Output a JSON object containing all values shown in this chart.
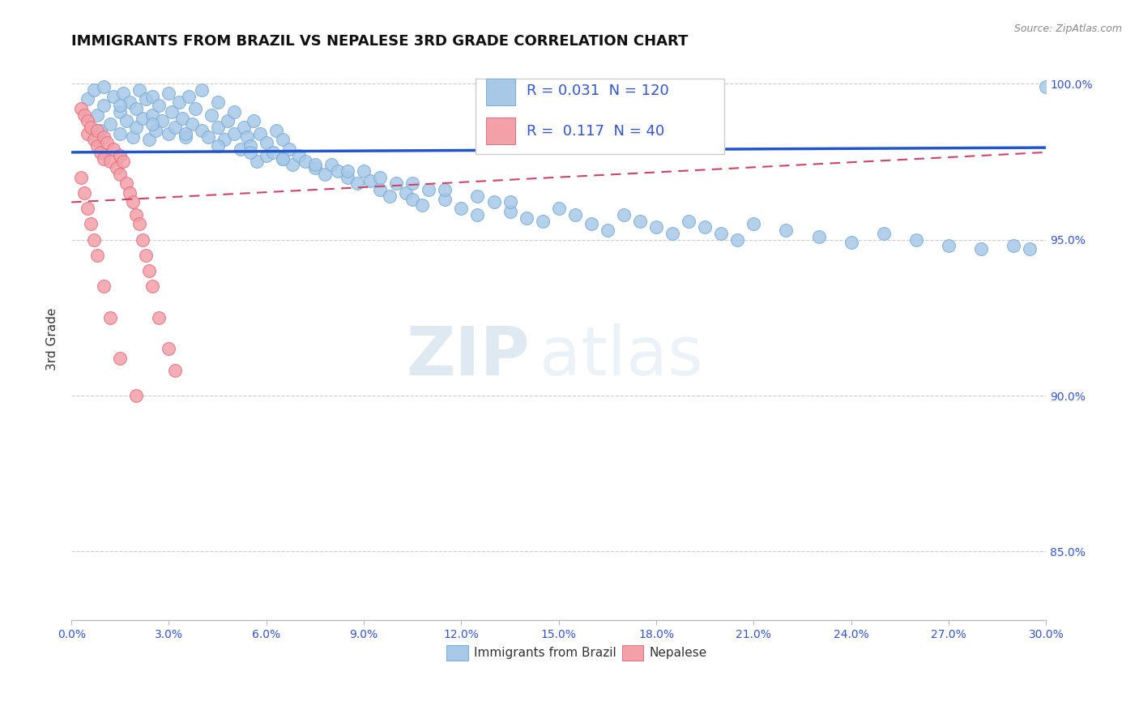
{
  "title": "IMMIGRANTS FROM BRAZIL VS NEPALESE 3RD GRADE CORRELATION CHART",
  "source_text": "Source: ZipAtlas.com",
  "ylabel": "3rd Grade",
  "legend_label1": "Immigrants from Brazil",
  "legend_label2": "Nepalese",
  "R1": "0.031",
  "N1": "120",
  "R2": "0.117",
  "N2": "40",
  "blue_color": "#a8c8e8",
  "blue_edge_color": "#7aadd4",
  "pink_color": "#f4a0a8",
  "pink_edge_color": "#e07080",
  "blue_line_color": "#2255cc",
  "pink_line_color": "#cc4466",
  "text_color": "#3355cc",
  "watermark_color": "#c8dff0",
  "xmin": 0.0,
  "xmax": 0.3,
  "ymin": 0.828,
  "ymax": 1.008,
  "y_ticks": [
    0.85,
    0.9,
    0.95,
    1.0
  ],
  "y_tick_labels": [
    "85.0%",
    "90.0%",
    "95.0%",
    "100.0%"
  ],
  "blue_line_y0": 0.978,
  "blue_line_y1": 0.9795,
  "pink_line_y0": 0.962,
  "pink_line_y1": 0.978,
  "blue_scatter_x": [
    0.005,
    0.007,
    0.008,
    0.009,
    0.01,
    0.01,
    0.012,
    0.013,
    0.015,
    0.015,
    0.016,
    0.017,
    0.018,
    0.019,
    0.02,
    0.02,
    0.021,
    0.022,
    0.023,
    0.024,
    0.025,
    0.025,
    0.026,
    0.027,
    0.028,
    0.03,
    0.03,
    0.031,
    0.032,
    0.033,
    0.034,
    0.035,
    0.036,
    0.037,
    0.038,
    0.04,
    0.04,
    0.042,
    0.043,
    0.045,
    0.045,
    0.047,
    0.048,
    0.05,
    0.05,
    0.052,
    0.053,
    0.054,
    0.055,
    0.056,
    0.057,
    0.058,
    0.06,
    0.06,
    0.062,
    0.063,
    0.065,
    0.065,
    0.067,
    0.068,
    0.07,
    0.072,
    0.075,
    0.078,
    0.08,
    0.082,
    0.085,
    0.088,
    0.09,
    0.092,
    0.095,
    0.098,
    0.1,
    0.103,
    0.105,
    0.108,
    0.11,
    0.115,
    0.12,
    0.125,
    0.13,
    0.135,
    0.14,
    0.145,
    0.15,
    0.155,
    0.16,
    0.165,
    0.17,
    0.175,
    0.18,
    0.185,
    0.19,
    0.195,
    0.2,
    0.205,
    0.21,
    0.22,
    0.23,
    0.24,
    0.25,
    0.26,
    0.27,
    0.28,
    0.29,
    0.295,
    0.3,
    0.015,
    0.025,
    0.035,
    0.045,
    0.055,
    0.065,
    0.075,
    0.085,
    0.095,
    0.105,
    0.115,
    0.125,
    0.135
  ],
  "blue_scatter_y": [
    0.995,
    0.998,
    0.99,
    0.985,
    0.999,
    0.993,
    0.987,
    0.996,
    0.991,
    0.984,
    0.997,
    0.988,
    0.994,
    0.983,
    0.992,
    0.986,
    0.998,
    0.989,
    0.995,
    0.982,
    0.99,
    0.996,
    0.985,
    0.993,
    0.988,
    0.997,
    0.984,
    0.991,
    0.986,
    0.994,
    0.989,
    0.983,
    0.996,
    0.987,
    0.992,
    0.985,
    0.998,
    0.983,
    0.99,
    0.986,
    0.994,
    0.982,
    0.988,
    0.984,
    0.991,
    0.979,
    0.986,
    0.983,
    0.98,
    0.988,
    0.975,
    0.984,
    0.977,
    0.981,
    0.978,
    0.985,
    0.976,
    0.982,
    0.979,
    0.974,
    0.977,
    0.975,
    0.973,
    0.971,
    0.974,
    0.972,
    0.97,
    0.968,
    0.972,
    0.969,
    0.966,
    0.964,
    0.968,
    0.965,
    0.963,
    0.961,
    0.966,
    0.963,
    0.96,
    0.958,
    0.962,
    0.959,
    0.957,
    0.956,
    0.96,
    0.958,
    0.955,
    0.953,
    0.958,
    0.956,
    0.954,
    0.952,
    0.956,
    0.954,
    0.952,
    0.95,
    0.955,
    0.953,
    0.951,
    0.949,
    0.952,
    0.95,
    0.948,
    0.947,
    0.948,
    0.947,
    0.999,
    0.993,
    0.987,
    0.984,
    0.98,
    0.978,
    0.976,
    0.974,
    0.972,
    0.97,
    0.968,
    0.966,
    0.964,
    0.962
  ],
  "pink_scatter_x": [
    0.003,
    0.004,
    0.005,
    0.005,
    0.006,
    0.007,
    0.008,
    0.008,
    0.009,
    0.01,
    0.01,
    0.011,
    0.012,
    0.013,
    0.014,
    0.015,
    0.015,
    0.016,
    0.017,
    0.018,
    0.019,
    0.02,
    0.021,
    0.022,
    0.023,
    0.024,
    0.025,
    0.027,
    0.03,
    0.032,
    0.003,
    0.004,
    0.005,
    0.006,
    0.007,
    0.008,
    0.01,
    0.012,
    0.015,
    0.02
  ],
  "pink_scatter_y": [
    0.992,
    0.99,
    0.988,
    0.984,
    0.986,
    0.982,
    0.98,
    0.985,
    0.978,
    0.983,
    0.976,
    0.981,
    0.975,
    0.979,
    0.973,
    0.977,
    0.971,
    0.975,
    0.968,
    0.965,
    0.962,
    0.958,
    0.955,
    0.95,
    0.945,
    0.94,
    0.935,
    0.925,
    0.915,
    0.908,
    0.97,
    0.965,
    0.96,
    0.955,
    0.95,
    0.945,
    0.935,
    0.925,
    0.912,
    0.9
  ]
}
